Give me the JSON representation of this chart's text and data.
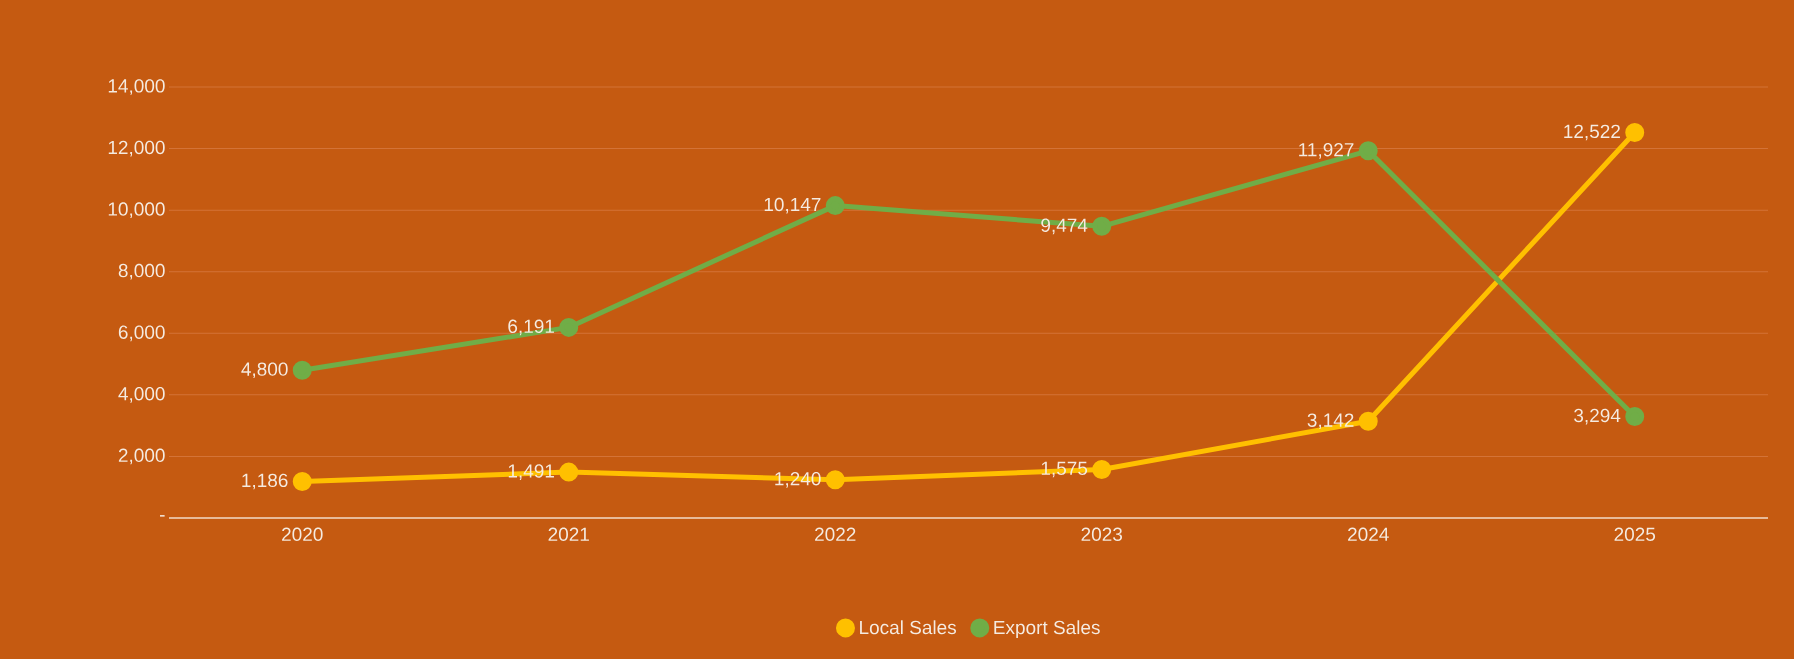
{
  "chart_data": {
    "type": "line",
    "categories": [
      "2020",
      "2021",
      "2022",
      "2023",
      "2024",
      "2025"
    ],
    "series": [
      {
        "name": "Local Sales",
        "color": "#ffc000",
        "values": [
          1186,
          1491,
          1240,
          1575,
          3142,
          12522
        ],
        "value_labels": [
          "1,186",
          "1,491",
          "1,240",
          "1,575",
          "3,142",
          "12,522"
        ]
      },
      {
        "name": "Export Sales",
        "color": "#70ad47",
        "values": [
          4800,
          6191,
          10147,
          9474,
          11927,
          3294
        ],
        "value_labels": [
          "4,800",
          "6,191",
          "10,147",
          "9,474",
          "11,927",
          "3,294"
        ]
      }
    ],
    "ylim": [
      0,
      14000
    ],
    "yticks": [
      {
        "value": 0,
        "label": "-"
      },
      {
        "value": 2000,
        "label": "2,000"
      },
      {
        "value": 4000,
        "label": "4,000"
      },
      {
        "value": 6000,
        "label": "6,000"
      },
      {
        "value": 8000,
        "label": "8,000"
      },
      {
        "value": 10000,
        "label": "10,000"
      },
      {
        "value": 12000,
        "label": "12,000"
      },
      {
        "value": 14000,
        "label": "14,000"
      }
    ],
    "grid": "y",
    "legend": "bottom",
    "marker": "circle",
    "line_style": "solid"
  }
}
